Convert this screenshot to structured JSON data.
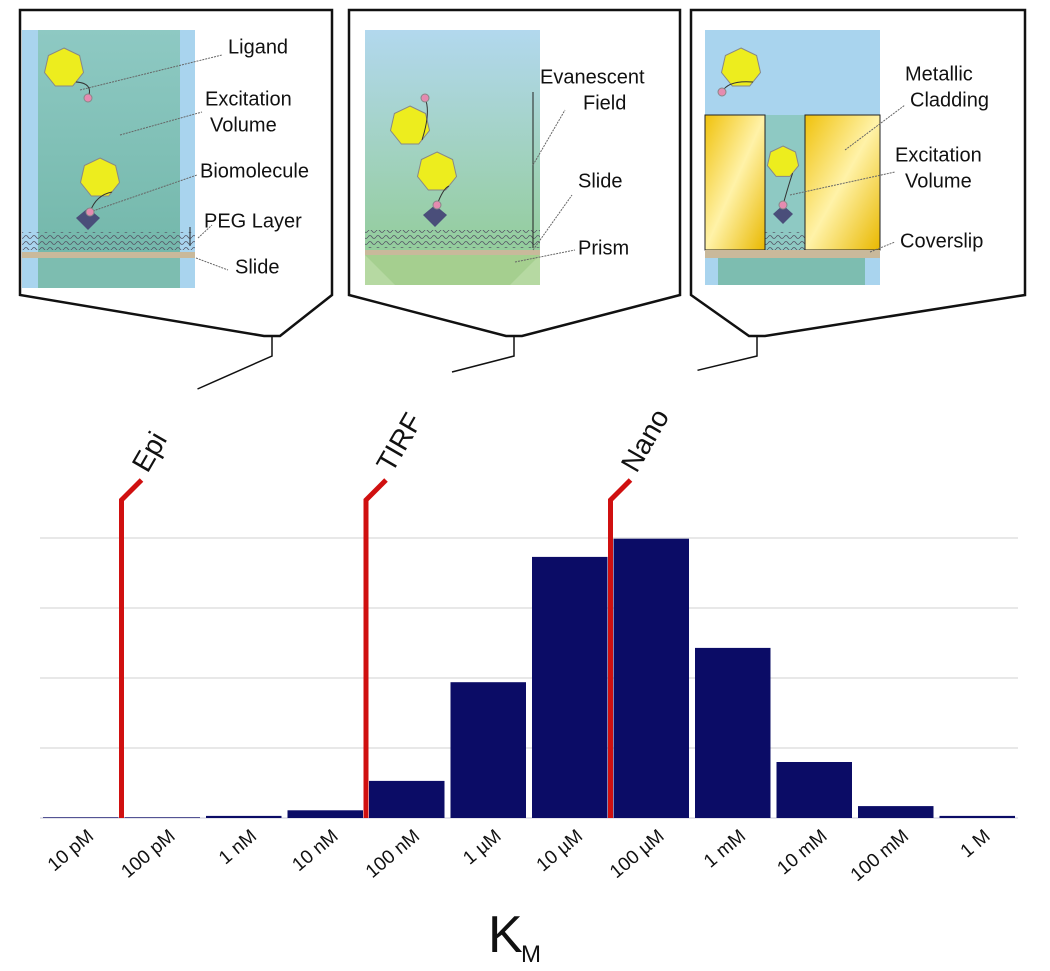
{
  "panels": [
    {
      "labels": [
        "Ligand",
        "Excitation",
        "Volume",
        "Biomolecule",
        "PEG Layer",
        "Slide"
      ]
    },
    {
      "labels": [
        "Evanescent",
        "Field",
        "Slide",
        "Prism"
      ]
    },
    {
      "labels": [
        "Metallic",
        "Cladding",
        "Excitation",
        "Volume",
        "Coverslip"
      ]
    }
  ],
  "chart_data": {
    "type": "bar",
    "categories": [
      "10 pM",
      "100 pM",
      "1 nM",
      "10 nM",
      "100 nM",
      "1 µM",
      "10 µM",
      "100 µM",
      "1 mM",
      "10 mM",
      "100 mM",
      "1 M"
    ],
    "values": [
      0.01,
      0.01,
      0.03,
      0.11,
      0.53,
      1.94,
      3.73,
      3.99,
      2.43,
      0.8,
      0.17,
      0.03
    ],
    "color": "#0b0c66",
    "ylim": [
      0,
      4
    ],
    "yticks": [
      1,
      2,
      3,
      4
    ],
    "grid": true,
    "xlabel": "K",
    "xlabel_sub": "M",
    "methods": [
      "Epi",
      "TIRF",
      "Nano"
    ]
  }
}
